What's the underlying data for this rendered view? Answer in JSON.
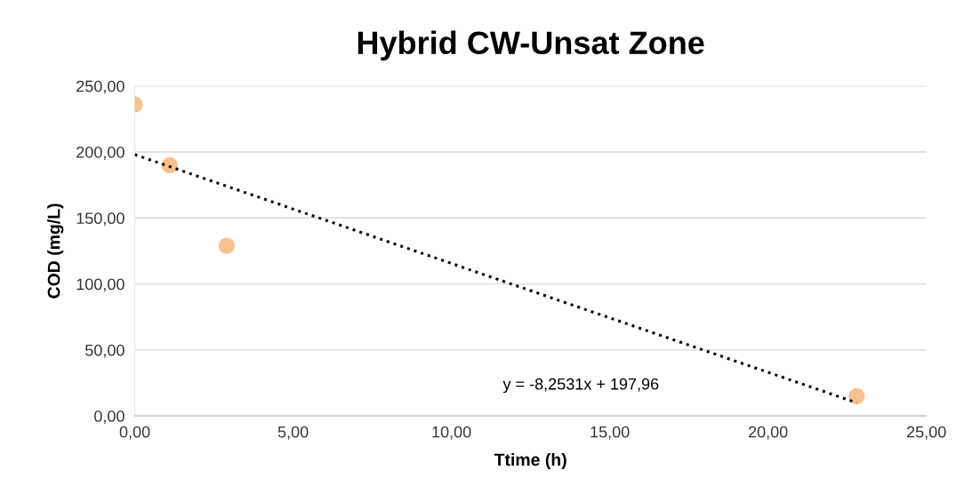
{
  "chart_data": {
    "type": "scatter",
    "title": "Hybrid CW-Unsat Zone",
    "xlabel": "Ttime (h)",
    "ylabel": "COD (mg/L)",
    "series": [
      {
        "color": "#f9c08f",
        "x": [
          0,
          1.1,
          2.9,
          22.8
        ],
        "values": [
          236,
          190,
          129,
          15
        ],
        "marker": "circle"
      },
      {
        "type": "line",
        "color": "#000000",
        "x": [
          0,
          22.8
        ],
        "values": [
          198,
          10
        ],
        "marker": "none",
        "line_style": "dotted"
      }
    ],
    "annotations": [
      "y = -8,2531x + 197,96"
    ],
    "xlim": [
      0,
      25
    ],
    "ylim": [
      0,
      250
    ],
    "xticks": [
      {
        "value": 0,
        "label": "0,00"
      },
      {
        "value": 5,
        "label": "5,00"
      },
      {
        "value": 10,
        "label": "10,00"
      },
      {
        "value": 15,
        "label": "15,00"
      },
      {
        "value": 20,
        "label": "20,00"
      },
      {
        "value": 25,
        "label": "25,00"
      }
    ],
    "yticks": [
      {
        "value": 0,
        "label": "0,00"
      },
      {
        "value": 50,
        "label": "50,00"
      },
      {
        "value": 100,
        "label": "100,00"
      },
      {
        "value": 150,
        "label": "150,00"
      },
      {
        "value": 200,
        "label": "200,00"
      },
      {
        "value": 250,
        "label": "250,00"
      }
    ],
    "grid": "y",
    "legend": false
  }
}
